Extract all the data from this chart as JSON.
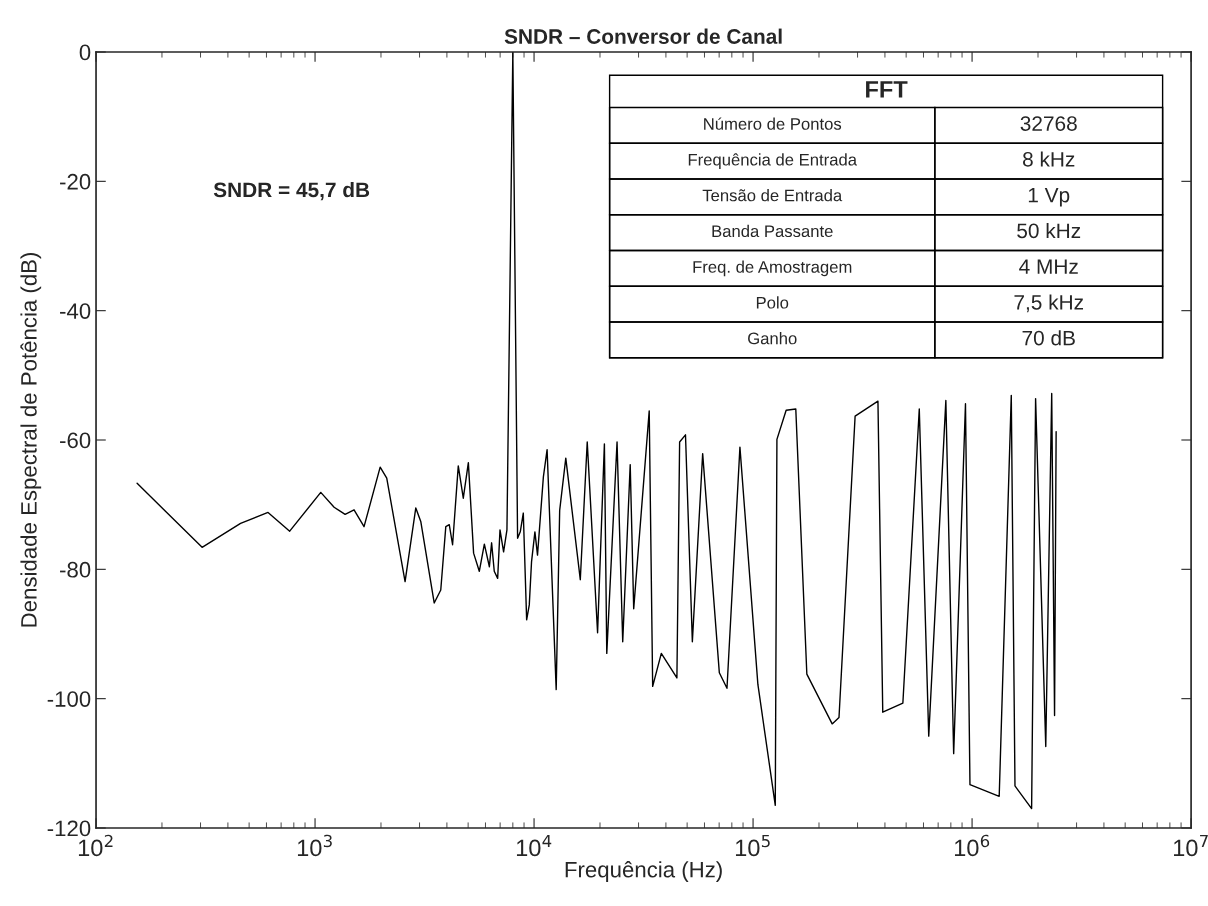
{
  "chart_data": {
    "type": "line",
    "title": "SNDR – Conversor de Canal",
    "xlabel": "Frequência (Hz)",
    "ylabel": "Densidade Espectral de Potência (dB)",
    "log": "x",
    "grid": false,
    "marker": "none",
    "line_style": "solid",
    "xlim": [
      100,
      10000000
    ],
    "ylim": [
      -120,
      0
    ],
    "xticks": [
      {
        "value": 100,
        "label": "10$^{2}$"
      },
      {
        "value": 1000,
        "label": "10$^{3}$"
      },
      {
        "value": 10000,
        "label": "10$^{4}$"
      },
      {
        "value": 100000,
        "label": "10$^{5}$"
      },
      {
        "value": 1000000,
        "label": "10$^{6}$"
      },
      {
        "value": 10000000,
        "label": "10$^{7}$"
      }
    ],
    "yticks": [
      -120,
      -100,
      -80,
      -60,
      -40,
      -20,
      0
    ],
    "annotations": [
      "SNDR = 45,7 dB",
      "FFT",
      "Número de Pontos",
      "32768",
      "Frequência de Entrada",
      "8 kHz",
      "Tensão de Entrada",
      "1 Vp",
      "Banda Passante",
      "50 kHz",
      "Freq. de Amostragem",
      "4 MHz",
      "Polo",
      "7,5 kHz",
      "Ganho",
      "70 dB"
    ],
    "series": [
      {
        "color": "#000000",
        "x": [
          154,
          305,
          457,
          610,
          766,
          1062,
          1222,
          1372,
          1507,
          1674,
          1983,
          2125,
          2577,
          2884,
          3039,
          3500,
          3750,
          3954,
          4100,
          4246,
          4508,
          4752,
          5012,
          5296,
          5623,
          5930,
          6252,
          6400,
          6580,
          6820,
          6990,
          7260,
          7520,
          8000,
          8410,
          8650,
          8930,
          9250,
          9510,
          9740,
          10090,
          10370,
          11030,
          11470,
          12620,
          13090,
          13960,
          16260,
          17490,
          19500,
          20950,
          21480,
          23930,
          25400,
          27480,
          28510,
          33560,
          34800,
          38110,
          44900,
          46200,
          49140,
          52820,
          58870,
          70140,
          76020,
          87100,
          105200,
          126300,
          128500,
          141600,
          156700,
          176000,
          229700,
          246800,
          292400,
          371700,
          391000,
          483000,
          574000,
          634000,
          759000,
          824000,
          933000,
          978000,
          1330000,
          1510000,
          1570000,
          1870000,
          1950000,
          2170000,
          2310000,
          2380000,
          2420000
        ],
        "values": [
          -66.7,
          -76.6,
          -72.9,
          -71.2,
          -74.1,
          -68.1,
          -70.4,
          -71.5,
          -70.8,
          -73.4,
          -64.2,
          -65.9,
          -81.9,
          -70.5,
          -72.6,
          -85.2,
          -83.2,
          -73.4,
          -73.1,
          -76.2,
          -64.0,
          -69.0,
          -63.5,
          -77.5,
          -80.3,
          -76.1,
          -79.6,
          -75.9,
          -80.3,
          -81.4,
          -73.9,
          -77.3,
          -73.9,
          0,
          -75.2,
          -74.2,
          -71.3,
          -87.8,
          -85.5,
          -78.8,
          -74.2,
          -77.8,
          -65.7,
          -61.5,
          -98.6,
          -70.9,
          -62.8,
          -81.6,
          -60.3,
          -89.8,
          -60.6,
          -93.0,
          -60.3,
          -91.2,
          -63.8,
          -86.1,
          -55.5,
          -98.1,
          -93.0,
          -96.8,
          -60.3,
          -59.2,
          -91.2,
          -62.1,
          -96.0,
          -98.4,
          -61.1,
          -97.8,
          -116.5,
          -59.9,
          -55.4,
          -55.2,
          -96.2,
          -103.9,
          -102.9,
          -56.3,
          -54.0,
          -102.1,
          -100.7,
          -55.2,
          -105.8,
          -53.9,
          -108.5,
          -54.4,
          -113.3,
          -115.1,
          -53.1,
          -113.5,
          -117.0,
          -53.6,
          -107.4,
          -52.8,
          -102.6,
          -58.7
        ]
      }
    ]
  }
}
